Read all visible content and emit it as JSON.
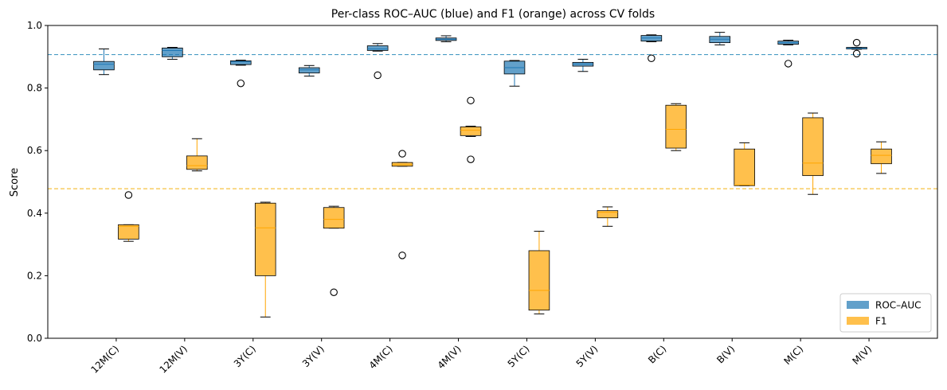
{
  "chart_data": {
    "type": "box",
    "title": "Per-class ROC–AUC (blue) and F1 (orange) across CV folds",
    "xlabel": "",
    "ylabel": "Score",
    "ylim": [
      0.0,
      1.0
    ],
    "yticks": [
      "0.0",
      "0.2",
      "0.4",
      "0.6",
      "0.8",
      "1.0"
    ],
    "grid": false,
    "legend_position": "lower-right",
    "categories": [
      "12M(C)",
      "12M(V)",
      "3Y(C)",
      "3Y(V)",
      "4M(C)",
      "4M(V)",
      "5Y(C)",
      "5Y(V)",
      "B(C)",
      "B(V)",
      "M(C)",
      "M(V)"
    ],
    "reference_lines": [
      {
        "series": "ROC–AUC",
        "value": 0.907,
        "color": "#4a9cc4",
        "style": "dashed"
      },
      {
        "series": "F1",
        "value": 0.478,
        "color": "#f5c242",
        "style": "dashed"
      }
    ],
    "series": [
      {
        "name": "ROC–AUC",
        "color": "#1f77b4",
        "stats": [
          {
            "whislo": 0.843,
            "q1": 0.858,
            "med": 0.876,
            "q3": 0.885,
            "whishi": 0.925,
            "fliers": []
          },
          {
            "whislo": 0.892,
            "q1": 0.9,
            "med": 0.92,
            "q3": 0.928,
            "whishi": 0.93,
            "fliers": []
          },
          {
            "whislo": 0.873,
            "q1": 0.875,
            "med": 0.884,
            "q3": 0.887,
            "whishi": 0.889,
            "fliers": [
              0.815
            ]
          },
          {
            "whislo": 0.838,
            "q1": 0.848,
            "med": 0.858,
            "q3": 0.865,
            "whishi": 0.872,
            "fliers": []
          },
          {
            "whislo": 0.918,
            "q1": 0.92,
            "med": 0.925,
            "q3": 0.935,
            "whishi": 0.942,
            "fliers": [
              0.841
            ]
          },
          {
            "whislo": 0.948,
            "q1": 0.952,
            "med": 0.956,
            "q3": 0.96,
            "whishi": 0.967,
            "fliers": []
          },
          {
            "whislo": 0.806,
            "q1": 0.845,
            "med": 0.865,
            "q3": 0.886,
            "whishi": 0.888,
            "fliers": []
          },
          {
            "whislo": 0.853,
            "q1": 0.87,
            "med": 0.877,
            "q3": 0.882,
            "whishi": 0.892,
            "fliers": []
          },
          {
            "whislo": 0.948,
            "q1": 0.95,
            "med": 0.96,
            "q3": 0.968,
            "whishi": 0.97,
            "fliers": [
              0.895
            ]
          },
          {
            "whislo": 0.938,
            "q1": 0.945,
            "med": 0.956,
            "q3": 0.965,
            "whishi": 0.978,
            "fliers": []
          },
          {
            "whislo": 0.938,
            "q1": 0.94,
            "med": 0.945,
            "q3": 0.95,
            "whishi": 0.953,
            "fliers": [
              0.878
            ]
          },
          {
            "whislo": 0.924,
            "q1": 0.925,
            "med": 0.927,
            "q3": 0.93,
            "whishi": 0.93,
            "fliers": [
              0.945,
              0.91
            ]
          }
        ]
      },
      {
        "name": "F1",
        "color": "#ffa500",
        "stats": [
          {
            "whislo": 0.31,
            "q1": 0.317,
            "med": 0.358,
            "q3": 0.363,
            "whishi": 0.363,
            "fliers": [
              0.458
            ]
          },
          {
            "whislo": 0.535,
            "q1": 0.54,
            "med": 0.552,
            "q3": 0.583,
            "whishi": 0.638,
            "fliers": []
          },
          {
            "whislo": 0.068,
            "q1": 0.2,
            "med": 0.353,
            "q3": 0.432,
            "whishi": 0.435,
            "fliers": []
          },
          {
            "whislo": 0.352,
            "q1": 0.352,
            "med": 0.38,
            "q3": 0.418,
            "whishi": 0.422,
            "fliers": [
              0.147
            ]
          },
          {
            "whislo": 0.55,
            "q1": 0.55,
            "med": 0.555,
            "q3": 0.562,
            "whishi": 0.562,
            "fliers": [
              0.59,
              0.265
            ]
          },
          {
            "whislo": 0.645,
            "q1": 0.648,
            "med": 0.665,
            "q3": 0.676,
            "whishi": 0.678,
            "fliers": [
              0.76,
              0.572
            ]
          },
          {
            "whislo": 0.078,
            "q1": 0.09,
            "med": 0.153,
            "q3": 0.28,
            "whishi": 0.342,
            "fliers": []
          },
          {
            "whislo": 0.358,
            "q1": 0.385,
            "med": 0.403,
            "q3": 0.408,
            "whishi": 0.42,
            "fliers": []
          },
          {
            "whislo": 0.6,
            "q1": 0.608,
            "med": 0.668,
            "q3": 0.745,
            "whishi": 0.75,
            "fliers": []
          },
          {
            "whislo": 0.488,
            "q1": 0.488,
            "med": 0.49,
            "q3": 0.605,
            "whishi": 0.625,
            "fliers": []
          },
          {
            "whislo": 0.46,
            "q1": 0.52,
            "med": 0.56,
            "q3": 0.705,
            "whishi": 0.72,
            "fliers": []
          },
          {
            "whislo": 0.527,
            "q1": 0.558,
            "med": 0.585,
            "q3": 0.605,
            "whishi": 0.628,
            "fliers": []
          }
        ]
      }
    ]
  }
}
